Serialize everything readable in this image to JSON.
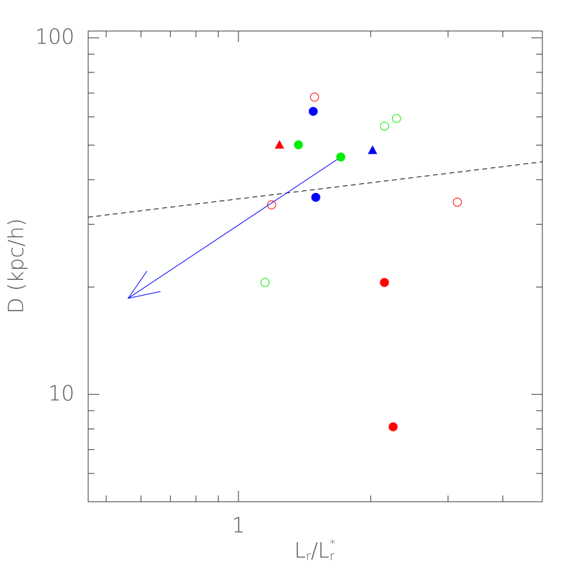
{
  "chart_data": {
    "type": "scatter",
    "xlabel": {
      "main": "L",
      "sub": "r",
      "sep": "/L",
      "sup": "*"
    },
    "ylabel": "D (kpc/h)",
    "xscale": "log",
    "yscale": "log",
    "xlim": [
      0.455,
      4.92
    ],
    "ylim": [
      5,
      104.5
    ],
    "xticks": [
      1
    ],
    "yticks": [
      10,
      100
    ],
    "xminorticks": [
      0.5,
      0.6,
      0.7,
      0.8,
      0.9,
      2,
      3,
      4
    ],
    "yminorticks": [
      6,
      7,
      8,
      9,
      20,
      30,
      40,
      50,
      60,
      70,
      80,
      90
    ],
    "series": [
      {
        "color": "#ff0000",
        "marker": "circle",
        "filled": false,
        "x": [
          1.49,
          1.19,
          3.15
        ],
        "y": [
          68.2,
          34.0,
          34.6
        ]
      },
      {
        "color": "#ff0000",
        "marker": "circle",
        "filled": true,
        "x": [
          2.15,
          2.25
        ],
        "y": [
          20.6,
          8.11
        ]
      },
      {
        "color": "#ff0000",
        "marker": "triangle",
        "filled": true,
        "x": [
          1.24
        ],
        "y": [
          50.1
        ]
      },
      {
        "color": "#0000ff",
        "marker": "circle",
        "filled": true,
        "x": [
          1.48,
          1.5
        ],
        "y": [
          62.2,
          35.7
        ]
      },
      {
        "color": "#0000ff",
        "marker": "triangle",
        "filled": true,
        "x": [
          2.02
        ],
        "y": [
          48.4
        ]
      },
      {
        "color": "#00ee00",
        "marker": "circle",
        "filled": true,
        "x": [
          1.37,
          1.71
        ],
        "y": [
          50.1,
          46.3
        ]
      },
      {
        "color": "#00ee00",
        "marker": "circle",
        "filled": false,
        "x": [
          2.15,
          2.29,
          1.15
        ],
        "y": [
          56.5,
          59.4,
          20.6
        ]
      }
    ],
    "fit_line": {
      "color": "#000000",
      "dashed": true,
      "x": [
        0.455,
        4.92
      ],
      "y": [
        31.4,
        44.9
      ]
    },
    "arrow": {
      "color": "#0000ff",
      "x": [
        1.71,
        0.561
      ],
      "y": [
        46.3,
        18.6
      ]
    }
  }
}
